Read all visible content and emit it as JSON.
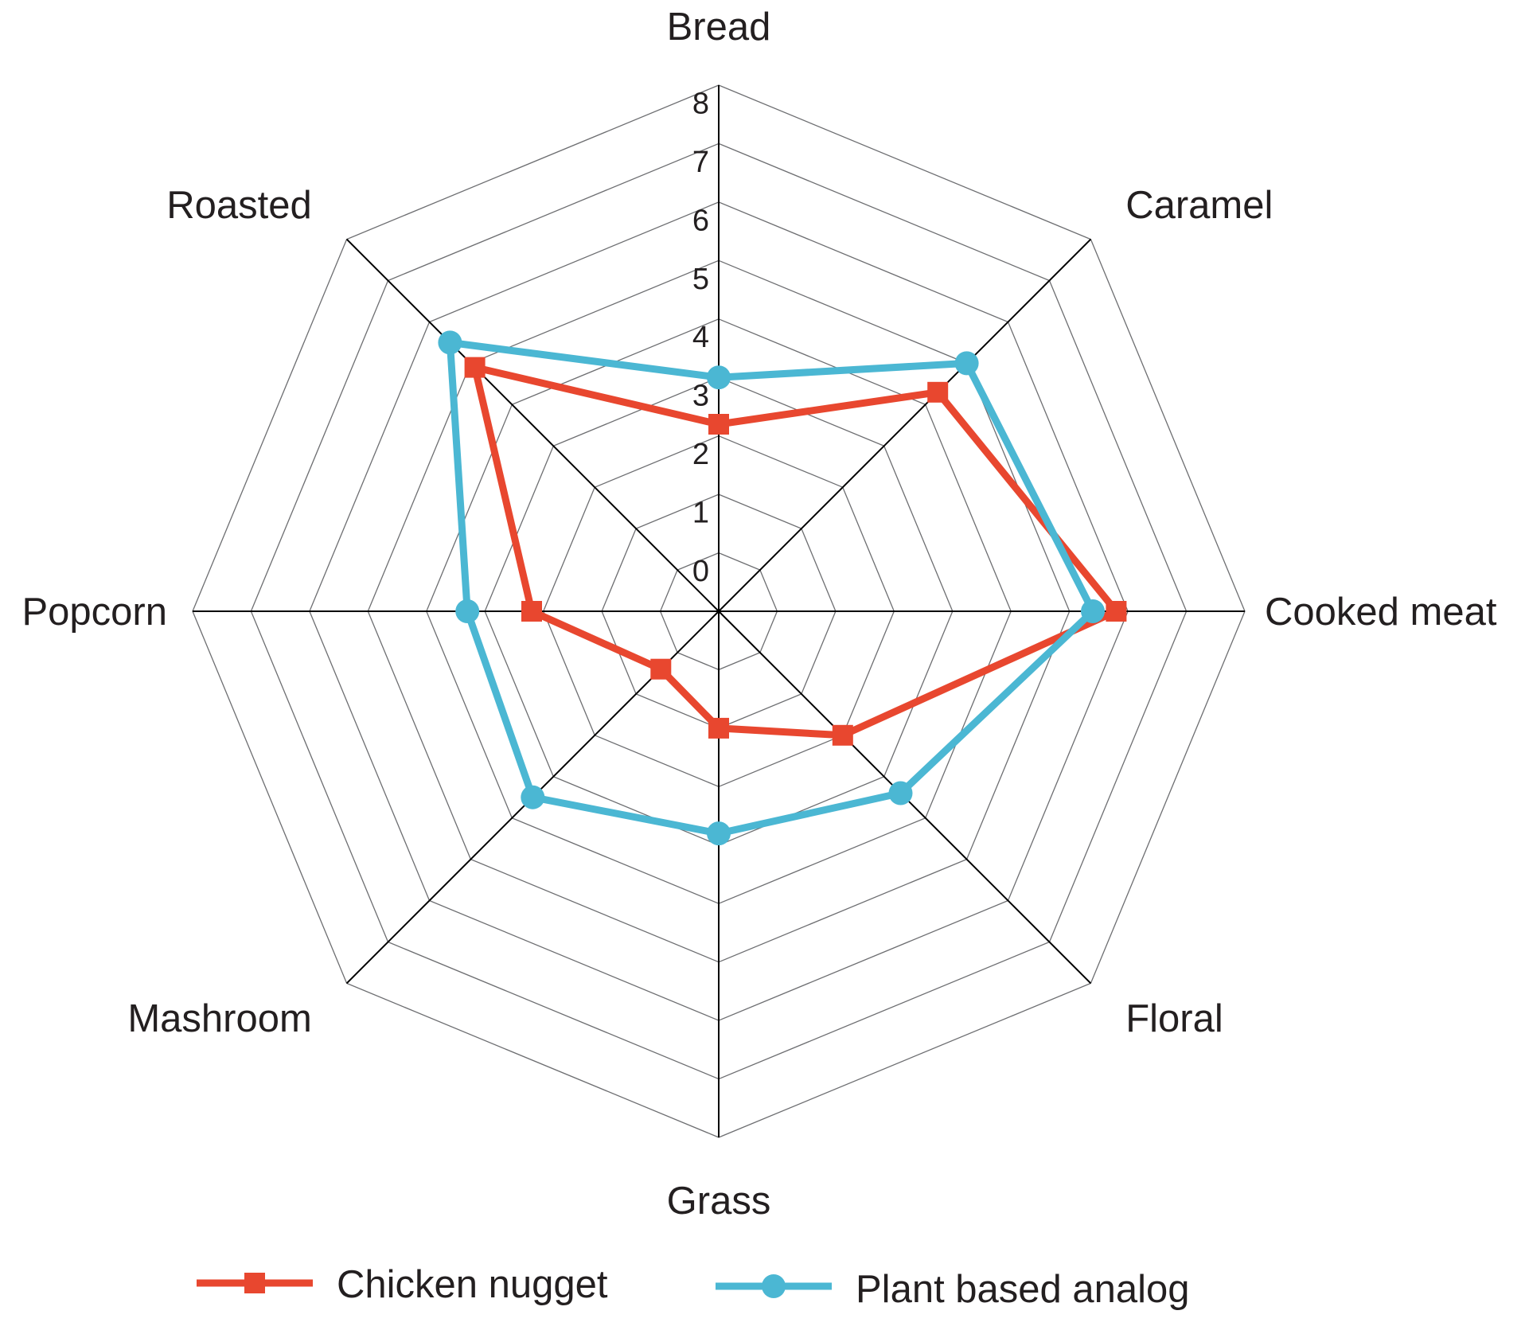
{
  "chart_data": {
    "type": "radar",
    "axes": [
      "Bread",
      "Caramel",
      "Cooked meat",
      "Floral",
      "Grass",
      "Mashroom",
      "Popcorn",
      "Roasted"
    ],
    "rlim": [
      0,
      9
    ],
    "ticks": [
      "0",
      "1",
      "2",
      "3",
      "4",
      "5",
      "6",
      "7",
      "8"
    ],
    "grid": true,
    "legend_position": "bottom",
    "series": [
      {
        "name": "Chicken nugget",
        "color": "#e8472f",
        "marker": "square",
        "values": [
          3.2,
          5.3,
          6.8,
          3.0,
          2.0,
          1.4,
          3.2,
          5.9
        ]
      },
      {
        "name": "Plant based analog",
        "color": "#4bb7d3",
        "marker": "circle",
        "values": [
          4.0,
          6.0,
          6.4,
          4.4,
          3.8,
          4.5,
          4.3,
          6.5
        ]
      }
    ]
  }
}
